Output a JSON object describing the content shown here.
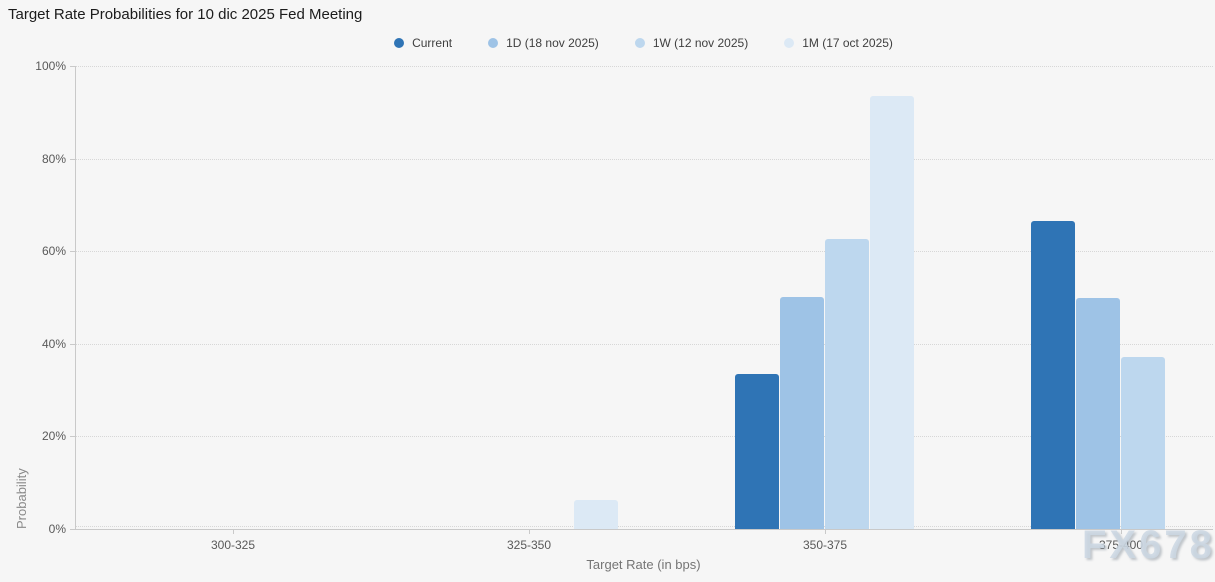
{
  "header": {
    "title": "Target Rate Probabilities for 10 dic 2025 Fed Meeting"
  },
  "watermark": "FX678",
  "chart_data": {
    "type": "bar",
    "title": "Target Rate Probabilities for 10 dic 2025 Fed Meeting",
    "xlabel": "Target Rate (in bps)",
    "ylabel": "Probability",
    "ylim": [
      0,
      100
    ],
    "yticks": [
      0,
      20,
      40,
      60,
      80,
      100
    ],
    "ytick_labels": [
      "0%",
      "20%",
      "40%",
      "60%",
      "80%",
      "100%"
    ],
    "categories": [
      "300-325",
      "325-350",
      "350-375",
      "375-400"
    ],
    "grid": "dotted-horizontal",
    "legend_position": "top-center",
    "series": [
      {
        "name": "Current",
        "color": "#2f74b5",
        "values": [
          0,
          0,
          33.5,
          66.5
        ]
      },
      {
        "name": "1D (18 nov 2025)",
        "color": "#9ec3e6",
        "values": [
          0,
          0,
          50.2,
          49.8
        ]
      },
      {
        "name": "1W (12 nov 2025)",
        "color": "#bdd7ee",
        "values": [
          0,
          0,
          62.7,
          37.1
        ]
      },
      {
        "name": "1M (17 oct 2025)",
        "color": "#dce9f5",
        "values": [
          0,
          6.2,
          93.5,
          0
        ]
      }
    ]
  }
}
